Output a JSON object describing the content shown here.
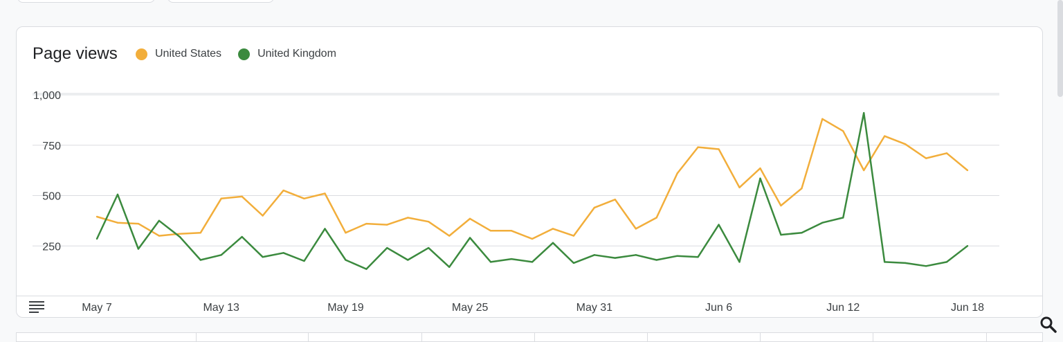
{
  "card": {
    "title": "Page views"
  },
  "chart_data": {
    "type": "line",
    "title": "Page views",
    "xlabel": "",
    "ylabel": "",
    "ylim": [
      0,
      1000
    ],
    "yticks": [
      250,
      500,
      750,
      1000
    ],
    "ytick_labels": [
      "250",
      "500",
      "750",
      "1,000"
    ],
    "grid": true,
    "legend_position": "top",
    "x": [
      "May 7",
      "May 8",
      "May 9",
      "May 10",
      "May 11",
      "May 12",
      "May 13",
      "May 14",
      "May 15",
      "May 16",
      "May 17",
      "May 18",
      "May 19",
      "May 20",
      "May 21",
      "May 22",
      "May 23",
      "May 24",
      "May 25",
      "May 26",
      "May 27",
      "May 28",
      "May 29",
      "May 30",
      "May 31",
      "Jun 1",
      "Jun 2",
      "Jun 3",
      "Jun 4",
      "Jun 5",
      "Jun 6",
      "Jun 7",
      "Jun 8",
      "Jun 9",
      "Jun 10",
      "Jun 11",
      "Jun 12",
      "Jun 13",
      "Jun 14",
      "Jun 15",
      "Jun 16",
      "Jun 17",
      "Jun 18"
    ],
    "xticks": [
      "May 7",
      "May 13",
      "May 19",
      "May 25",
      "May 31",
      "Jun 6",
      "Jun 12",
      "Jun 18"
    ],
    "series": [
      {
        "name": "United States",
        "color": "#f2ae3b",
        "values": [
          440,
          410,
          405,
          345,
          355,
          360,
          530,
          540,
          445,
          570,
          530,
          555,
          360,
          405,
          400,
          435,
          415,
          345,
          430,
          370,
          370,
          330,
          380,
          345,
          485,
          525,
          380,
          435,
          655,
          785,
          775,
          585,
          680,
          495,
          580,
          925,
          865,
          670,
          840,
          800,
          730,
          755,
          670
        ]
      },
      {
        "name": "United Kingdom",
        "color": "#3b8a3e",
        "values": [
          330,
          550,
          280,
          420,
          340,
          225,
          250,
          340,
          240,
          260,
          220,
          380,
          225,
          180,
          285,
          225,
          285,
          190,
          335,
          215,
          230,
          215,
          310,
          210,
          250,
          235,
          250,
          225,
          245,
          240,
          400,
          215,
          630,
          350,
          360,
          410,
          435,
          955,
          215,
          210,
          195,
          215,
          295
        ]
      }
    ]
  },
  "toolbar": {
    "table_icon": "table-view-icon",
    "zoom_icon": "search-icon"
  }
}
